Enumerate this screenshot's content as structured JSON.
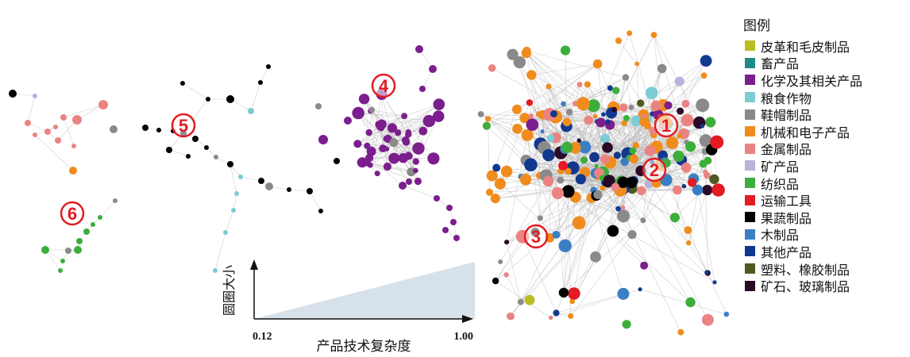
{
  "legend": {
    "title": "图例",
    "items": [
      {
        "label": "皮革和毛皮制品",
        "color": "#b8bd22"
      },
      {
        "label": "畜产品",
        "color": "#1f8a86"
      },
      {
        "label": "化学及其相关产品",
        "color": "#7b1e8e"
      },
      {
        "label": "粮食作物",
        "color": "#7dcbd3"
      },
      {
        "label": "鞋帽制品",
        "color": "#8a8a8a"
      },
      {
        "label": "机械和电子产品",
        "color": "#f08c1d"
      },
      {
        "label": "金属制品",
        "color": "#eb8383"
      },
      {
        "label": "矿产品",
        "color": "#b8b3dc"
      },
      {
        "label": "纺织品",
        "color": "#3cae3b"
      },
      {
        "label": "运输工具",
        "color": "#e31b23"
      },
      {
        "label": "果蔬制品",
        "color": "#000000"
      },
      {
        "label": "木制品",
        "color": "#3a7fc4"
      },
      {
        "label": "其他产品",
        "color": "#12388e"
      },
      {
        "label": "塑料、橡胶制品",
        "color": "#4f5a23"
      },
      {
        "label": "矿石、玻璃制品",
        "color": "#2a0a26"
      }
    ]
  },
  "clusters": [
    "1",
    "2",
    "3",
    "4",
    "5",
    "6"
  ],
  "size_scale": {
    "y_label": "圆圈大小",
    "x_label": "产品技术复杂度",
    "min_label": "0.12",
    "max_label": "1.00",
    "fill_color": "#d6e1ea"
  },
  "colors": {
    "edge": "#bcbcbc",
    "cluster_marker": "#e31b23"
  }
}
